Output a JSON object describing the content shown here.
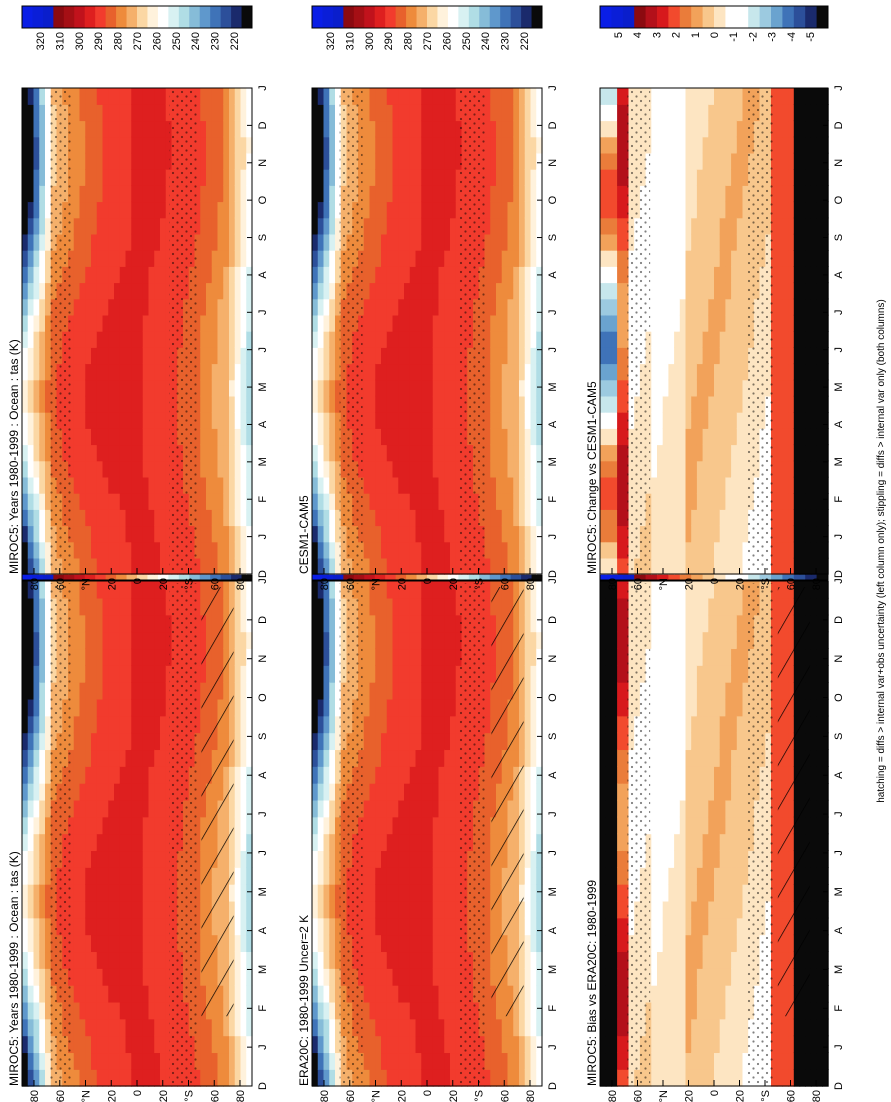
{
  "figure_caption": "hatching = diffs > internal var+obs uncertainty (left column only); stippling = diffs > internal var only (both columns)",
  "palettes": {
    "temperature": [
      "#0a0a0a",
      "#1a2a6c",
      "#2c4f9a",
      "#3f73b8",
      "#5f98cc",
      "#86bcd8",
      "#b0dde5",
      "#d8f1f2",
      "#ffffff",
      "#fff2dc",
      "#fbd7a4",
      "#f5b06b",
      "#ee8b3c",
      "#e8612c",
      "#f23b2d",
      "#de1f1f",
      "#c1121c",
      "#a50f15",
      "#8b0a10",
      "#0a1ecc",
      "#0a1ed8",
      "#0a1ee6"
    ],
    "difference": [
      "#0a0a0a",
      "#1a2a6c",
      "#2c4f9a",
      "#3f73b8",
      "#6aa3cf",
      "#9ccae0",
      "#c7e7ec",
      "#ffffff",
      "#ffffff",
      "#fde5c2",
      "#f8c78c",
      "#f2a25a",
      "#ea7c3a",
      "#f24a2d",
      "#d7191c",
      "#b3101a",
      "#8b0a10",
      "#0a1ecc",
      "#0a1ed8",
      "#0a1ee6"
    ]
  },
  "axes_common": {
    "months": [
      "D",
      "J",
      "F",
      "M",
      "A",
      "M",
      "J",
      "J",
      "A",
      "S",
      "O",
      "N",
      "D",
      "J"
    ],
    "lat_ticks": [
      "80",
      "60",
      "°N",
      "20",
      "0",
      "20",
      "°S",
      "60",
      "80"
    ]
  },
  "chart_data": [
    {
      "type": "heatmap",
      "title": "MIROC5: Years 1980-1999 : Ocean : tas (K)",
      "colorbar_ticks": [
        "320",
        "310",
        "300",
        "290",
        "280",
        "270",
        "260",
        "250",
        "240",
        "230",
        "220"
      ],
      "palette": "temperature",
      "hatching": true,
      "stippling": true
    },
    {
      "type": "heatmap",
      "title": "MIROC5: Years 1980-1999 : Ocean : tas (K)",
      "colorbar_ticks": [
        "320",
        "310",
        "300",
        "290",
        "280",
        "270",
        "260",
        "250",
        "240",
        "230",
        "220"
      ],
      "palette": "temperature",
      "hatching": false,
      "stippling": true
    },
    {
      "type": "heatmap",
      "title": "ERA20C: 1980-1999 Uncer=2 K",
      "colorbar_ticks": [
        "320",
        "310",
        "300",
        "290",
        "280",
        "270",
        "260",
        "250",
        "240",
        "230",
        "220"
      ],
      "palette": "temperature",
      "hatching": true,
      "stippling": true
    },
    {
      "type": "heatmap",
      "title": "CESM1-CAM5",
      "colorbar_ticks": [
        "320",
        "310",
        "300",
        "290",
        "280",
        "270",
        "260",
        "250",
        "240",
        "230",
        "220"
      ],
      "palette": "temperature",
      "hatching": false,
      "stippling": true
    },
    {
      "type": "heatmap",
      "title": "MIROC5: Bias vs ERA20C: 1980-1999",
      "colorbar_ticks": [
        "5",
        "4",
        "3",
        "2",
        "1",
        "0",
        "-1",
        "-2",
        "-3",
        "-4",
        "-5"
      ],
      "palette": "difference",
      "hatching": true,
      "stippling": true
    },
    {
      "type": "heatmap",
      "title": "MIROC5: Change vs CESM1-CAM5",
      "colorbar_ticks": [
        "5",
        "4",
        "3",
        "2",
        "1",
        "0",
        "-1",
        "-2",
        "-3",
        "-4",
        "-5"
      ],
      "palette": "difference",
      "hatching": false,
      "stippling": true
    }
  ]
}
